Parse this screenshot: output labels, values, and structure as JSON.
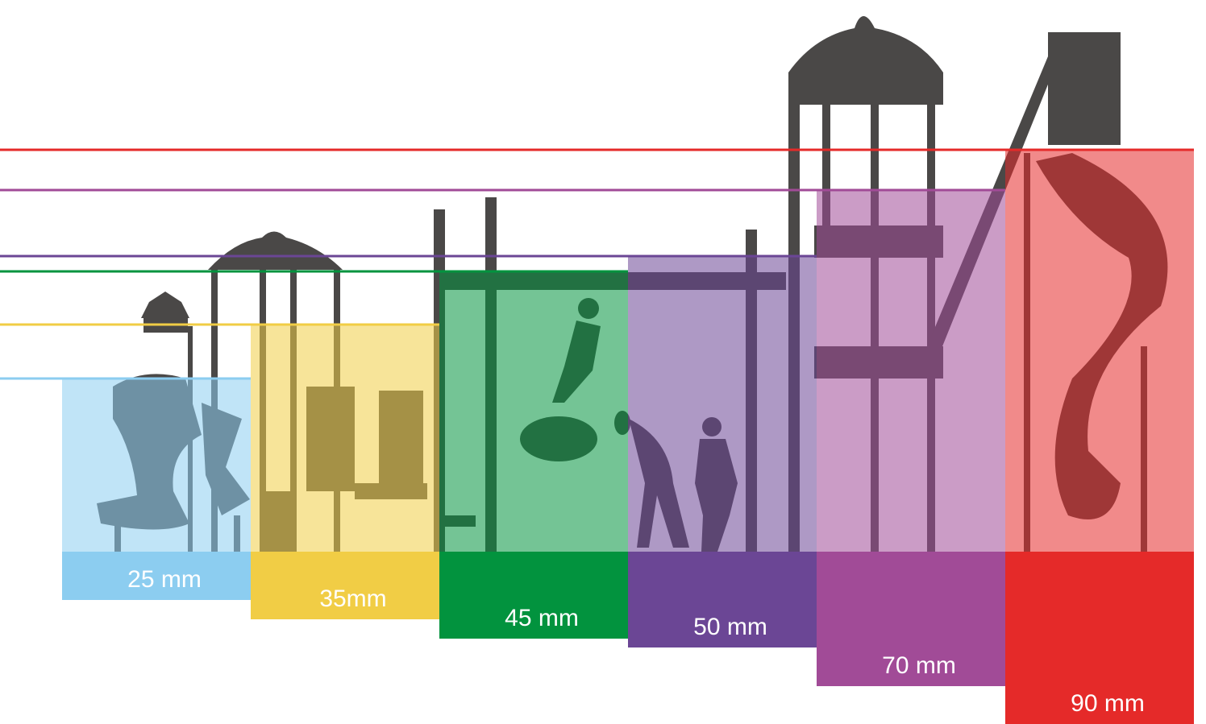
{
  "columns": [
    {
      "label": "25 mm",
      "color": "#8ccdf0"
    },
    {
      "label": "35mm",
      "color": "#f1cd45"
    },
    {
      "label": "45 mm",
      "color": "#02933e"
    },
    {
      "label": "50 mm",
      "color": "#6b4695"
    },
    {
      "label": "70 mm",
      "color": "#a14b97"
    },
    {
      "label": "90 mm",
      "color": "#e52a29"
    }
  ]
}
